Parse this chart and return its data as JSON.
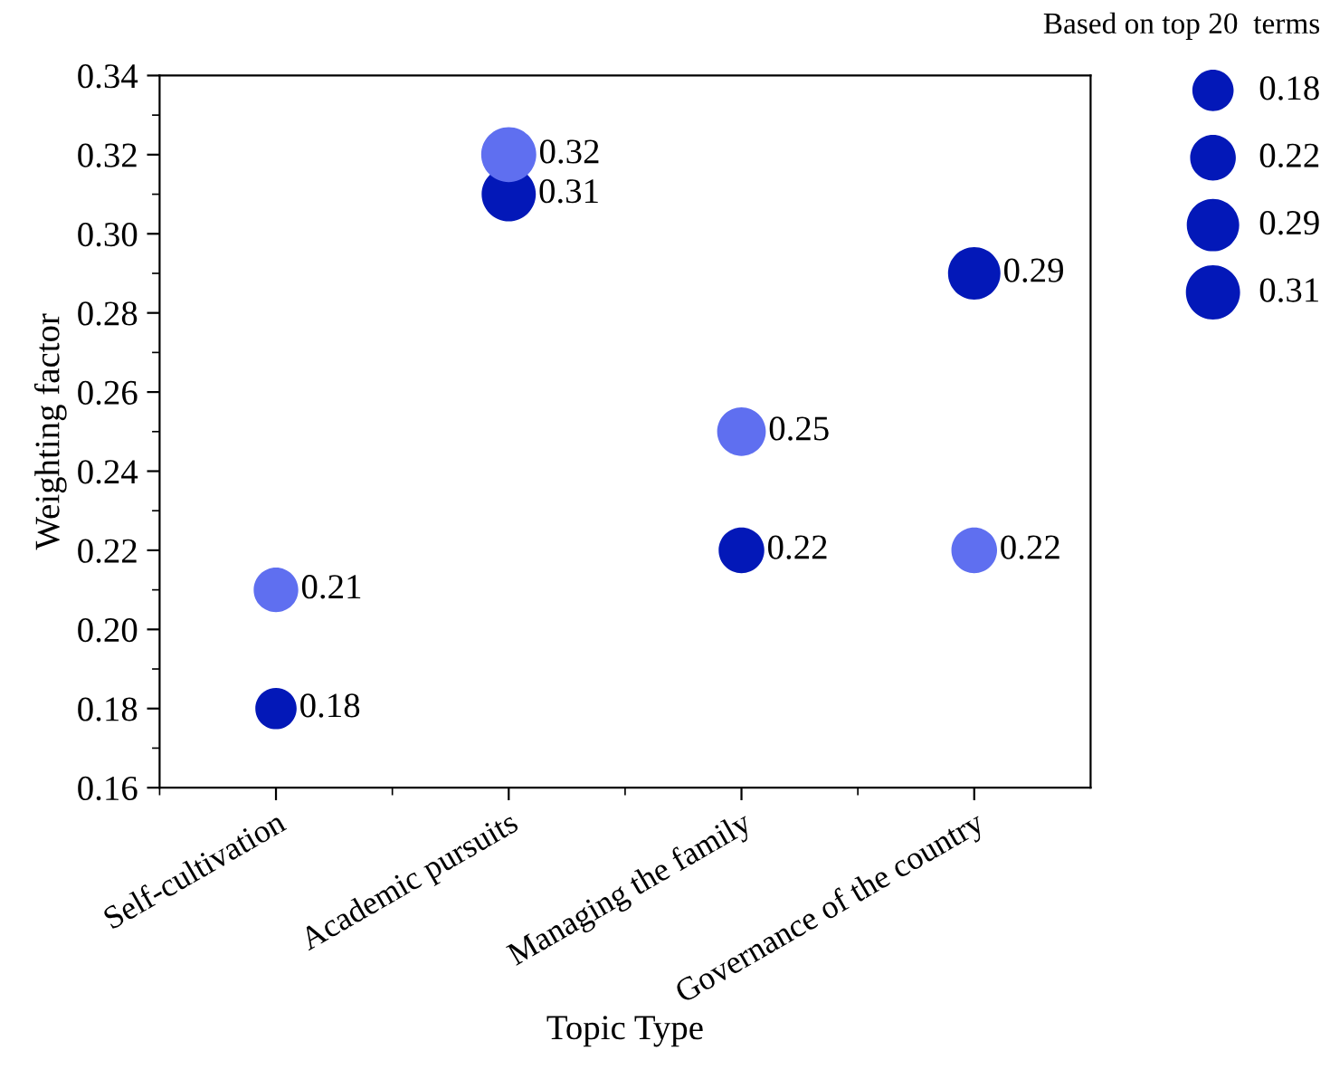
{
  "chart_data": {
    "type": "bubble",
    "xlabel": "Topic Type",
    "ylabel": "Weighting factor",
    "legend_title": "Based on top 20  terms",
    "categories": [
      "Self-cultivation",
      "Academic pursuits",
      "Managing the family",
      "Governance of the country"
    ],
    "series": [
      {
        "color": "#0318b8",
        "values": [
          0.18,
          0.31,
          0.22,
          0.29
        ],
        "sizes": [
          0.18,
          0.31,
          0.22,
          0.29
        ]
      },
      {
        "color": "#5f6ff0",
        "values": [
          0.21,
          0.32,
          0.25,
          0.22
        ],
        "sizes": [
          0.21,
          0.32,
          0.25,
          0.22
        ]
      }
    ],
    "size_legend": [
      0.18,
      0.22,
      0.29,
      0.31
    ],
    "ylim": [
      0.16,
      0.34
    ],
    "yticks": [
      0.16,
      0.18,
      {
        "value": 0.2,
        "label": "0.20"
      },
      0.22,
      0.24,
      0.26,
      0.28,
      {
        "value": 0.3,
        "label": "0.30"
      },
      0.32,
      0.34
    ],
    "data_labels": true,
    "grid": false
  }
}
